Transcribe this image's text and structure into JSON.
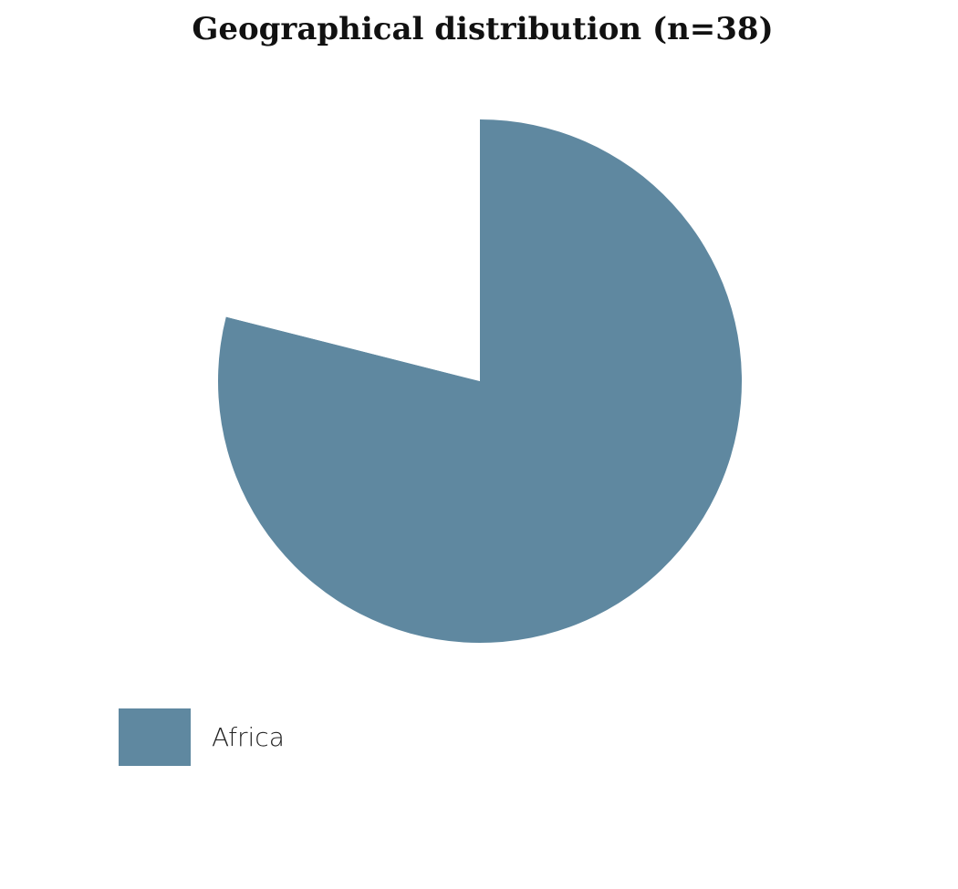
{
  "chart_data": {
    "type": "pie",
    "title": "Geographical distribution (n=38)",
    "slices": [
      {
        "name": "Africa",
        "value": 30,
        "color": "#5f88a0"
      },
      {
        "name": "",
        "value": 8,
        "color": "#ffffff"
      }
    ],
    "start_angle": "12 o'clock",
    "direction": "clockwise",
    "legend": {
      "position": "bottom-left",
      "entries": [
        "Africa"
      ]
    }
  }
}
